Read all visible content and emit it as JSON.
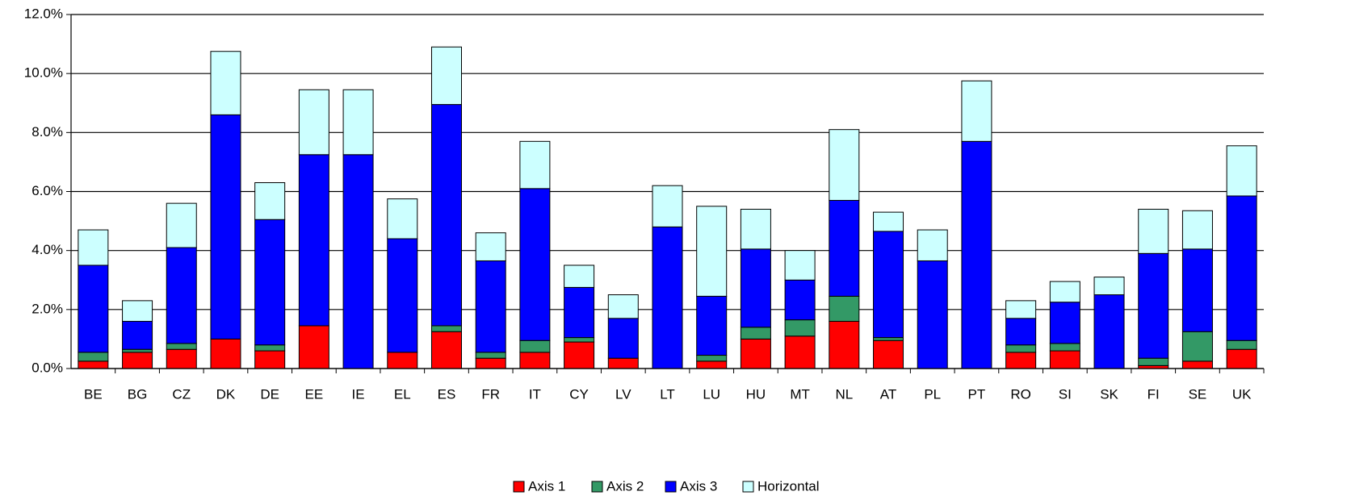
{
  "chart_data": {
    "type": "stacked_bar",
    "categories": [
      "BE",
      "BG",
      "CZ",
      "DK",
      "DE",
      "EE",
      "IE",
      "EL",
      "ES",
      "FR",
      "IT",
      "CY",
      "LV",
      "LT",
      "LU",
      "HU",
      "MT",
      "NL",
      "AT",
      "PL",
      "PT",
      "RO",
      "SI",
      "SK",
      "FI",
      "SE",
      "UK"
    ],
    "series": [
      {
        "name": "Axis 1",
        "color": "#ff0000",
        "values": [
          0.25,
          0.55,
          0.65,
          1.0,
          0.6,
          1.45,
          0,
          0.55,
          1.25,
          0.35,
          0.55,
          0.9,
          0.35,
          0,
          0.25,
          1.0,
          1.1,
          1.6,
          0.95,
          0,
          0,
          0.55,
          0.6,
          0,
          0.1,
          0.25,
          0.65
        ]
      },
      {
        "name": "Axis 2",
        "color": "#339966",
        "values": [
          0.3,
          0.1,
          0.2,
          0,
          0.2,
          0,
          0,
          0,
          0.2,
          0.2,
          0.4,
          0.15,
          0,
          0,
          0.2,
          0.4,
          0.55,
          0.85,
          0.1,
          0,
          0,
          0.25,
          0.25,
          0,
          0.25,
          1.0,
          0.3
        ]
      },
      {
        "name": "Axis 3",
        "color": "#0000ff",
        "values": [
          2.95,
          0.95,
          3.25,
          7.6,
          4.25,
          5.8,
          7.25,
          3.85,
          7.5,
          3.1,
          5.15,
          1.7,
          1.35,
          4.8,
          2.0,
          2.65,
          1.35,
          3.25,
          3.6,
          3.65,
          7.7,
          0.9,
          1.4,
          2.5,
          3.55,
          2.8,
          4.9
        ]
      },
      {
        "name": "Horizontal",
        "color": "#ccffff",
        "values": [
          1.2,
          0.7,
          1.5,
          2.15,
          1.25,
          2.2,
          2.2,
          1.35,
          1.95,
          0.95,
          1.6,
          0.75,
          0.8,
          1.4,
          3.05,
          1.35,
          1.0,
          2.4,
          0.65,
          1.05,
          2.05,
          0.6,
          0.7,
          0.6,
          1.5,
          1.3,
          1.7
        ]
      }
    ],
    "ylim": [
      0,
      12
    ],
    "yticks": [
      {
        "value": 0,
        "label": "0.0%"
      },
      {
        "value": 2,
        "label": "2.0%"
      },
      {
        "value": 4,
        "label": "4.0%"
      },
      {
        "value": 6,
        "label": "6.0%"
      },
      {
        "value": 8,
        "label": "8.0%"
      },
      {
        "value": 10,
        "label": "10.0%"
      },
      {
        "value": 12,
        "label": "12.0%"
      }
    ],
    "grid": true,
    "legend": "bottom"
  }
}
